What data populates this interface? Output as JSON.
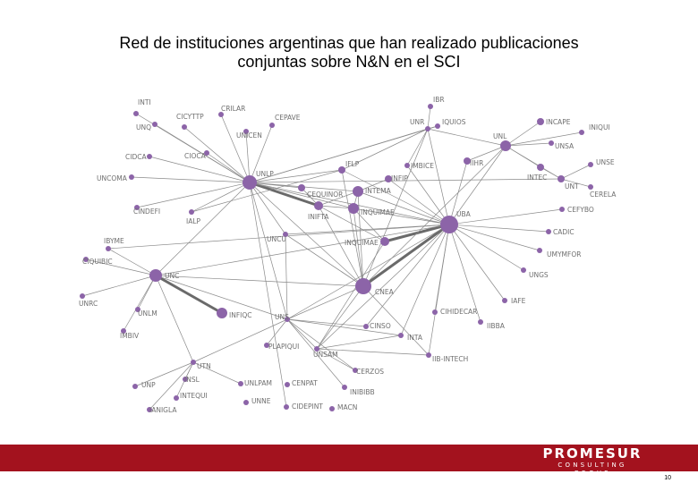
{
  "title": {
    "line1": "Red de instituciones argentinas que han realizado publicaciones",
    "line2": "conjuntas sobre N&N en el SCI"
  },
  "colors": {
    "node": "#8c64a8",
    "edge": "#8a8a8a",
    "footer_bar": "#a3121e"
  },
  "network": {
    "nodes": [
      {
        "id": "INTI",
        "label": "INTI"
      },
      {
        "id": "UNQ",
        "label": "UNQ"
      },
      {
        "id": "CICYTTP",
        "label": "CICYTTP"
      },
      {
        "id": "CRILAR",
        "label": "CRILAR"
      },
      {
        "id": "CEPAVE",
        "label": "CEPAVE"
      },
      {
        "id": "UNICEN",
        "label": "UNICEN"
      },
      {
        "id": "CIDCA",
        "label": "CIDCA"
      },
      {
        "id": "CIOCA",
        "label": "CIOCA"
      },
      {
        "id": "UNCOMA",
        "label": "UNCOMA"
      },
      {
        "id": "UNLP",
        "label": "UNLP"
      },
      {
        "id": "CINDEFI",
        "label": "CINDEFI"
      },
      {
        "id": "IALP",
        "label": "IALP"
      },
      {
        "id": "CEQUINOR",
        "label": "CEQUINOR"
      },
      {
        "id": "IFLP",
        "label": "IFLP"
      },
      {
        "id": "INIFTA",
        "label": "INIFTA"
      },
      {
        "id": "INFIP",
        "label": "INFIP"
      },
      {
        "id": "INTEMA",
        "label": "INTEMA"
      },
      {
        "id": "INQUIMAE_top",
        "label": "INQUIMAE"
      },
      {
        "id": "IMBICE",
        "label": "IMBICE"
      },
      {
        "id": "IBR",
        "label": "IBR"
      },
      {
        "id": "UNR",
        "label": "UNR"
      },
      {
        "id": "IQUIOS",
        "label": "IQUIOS"
      },
      {
        "id": "IIHR",
        "label": "IIHR"
      },
      {
        "id": "UNL",
        "label": "UNL"
      },
      {
        "id": "INCAPE",
        "label": "INCAPE"
      },
      {
        "id": "INIQUI",
        "label": "INIQUI"
      },
      {
        "id": "UNSA",
        "label": "UNSA"
      },
      {
        "id": "INTEC",
        "label": "INTEC"
      },
      {
        "id": "UNSE",
        "label": "UNSE"
      },
      {
        "id": "UNT",
        "label": "UNT"
      },
      {
        "id": "CERELA",
        "label": "CERELA"
      },
      {
        "id": "UBA",
        "label": "UBA"
      },
      {
        "id": "CEFYBO",
        "label": "CEFYBO"
      },
      {
        "id": "CADIC",
        "label": "CADIC"
      },
      {
        "id": "UMYMFOR",
        "label": "UMYMFOR"
      },
      {
        "id": "UNGS",
        "label": "UNGS"
      },
      {
        "id": "IAFE",
        "label": "IAFE"
      },
      {
        "id": "IIBBA",
        "label": "IIBBA"
      },
      {
        "id": "CIHIDECAR",
        "label": "CIHIDECAR"
      },
      {
        "id": "INQUIMAE",
        "label": "INQUIMAE"
      },
      {
        "id": "UNCU",
        "label": "UNCU"
      },
      {
        "id": "CNEA",
        "label": "CNEA"
      },
      {
        "id": "IBYME",
        "label": "IBYME"
      },
      {
        "id": "CIQUIBIC",
        "label": "CIQUIBIC"
      },
      {
        "id": "UNC",
        "label": "UNC"
      },
      {
        "id": "UNRC",
        "label": "UNRC"
      },
      {
        "id": "UNLM",
        "label": "UNLM"
      },
      {
        "id": "INFIQC",
        "label": "INFIQC"
      },
      {
        "id": "IMBIV",
        "label": "IMBIV"
      },
      {
        "id": "UNS",
        "label": "UNS"
      },
      {
        "id": "CINSO",
        "label": "CINSO"
      },
      {
        "id": "INTA",
        "label": "INTA"
      },
      {
        "id": "PLAPIQUI",
        "label": "PLAPIQUI"
      },
      {
        "id": "UNSAM",
        "label": "UNSAM"
      },
      {
        "id": "IIB-INTECH",
        "label": "IIB-INTECH"
      },
      {
        "id": "CERZOS",
        "label": "CERZOS"
      },
      {
        "id": "INIBIBB",
        "label": "INIBIBB"
      },
      {
        "id": "UTN",
        "label": "UTN"
      },
      {
        "id": "INSL",
        "label": "INSL"
      },
      {
        "id": "UNP",
        "label": "UNP"
      },
      {
        "id": "INTEQUI",
        "label": "INTEQUI"
      },
      {
        "id": "IANIGLA",
        "label": "IANIGLA"
      },
      {
        "id": "UNLPAM",
        "label": "UNLPAM"
      },
      {
        "id": "CENPAT",
        "label": "CENPAT"
      },
      {
        "id": "UNNE",
        "label": "UNNE"
      },
      {
        "id": "CIDEPINT",
        "label": "CIDEPINT"
      },
      {
        "id": "MACN",
        "label": "MACN"
      }
    ],
    "edges": [
      [
        "UNLP",
        "INIFTA",
        "strong"
      ],
      [
        "UBA",
        "CNEA",
        "strong"
      ],
      [
        "UNC",
        "INFIQC",
        "strong"
      ],
      [
        "UBA",
        "INQUIMAE",
        "strong"
      ],
      [
        "UNLP",
        "INTI"
      ],
      [
        "UNLP",
        "UNQ"
      ],
      [
        "UNLP",
        "CICYTTP"
      ],
      [
        "UNLP",
        "CRILAR"
      ],
      [
        "UNLP",
        "CEPAVE"
      ],
      [
        "UNLP",
        "UNICEN"
      ],
      [
        "UNLP",
        "CIDCA"
      ],
      [
        "UNLP",
        "CIOCA"
      ],
      [
        "UNLP",
        "UNCOMA"
      ],
      [
        "UNLP",
        "CINDEFI"
      ],
      [
        "UNLP",
        "IALP"
      ],
      [
        "UNLP",
        "CEQUINOR"
      ],
      [
        "UNLP",
        "IFLP"
      ],
      [
        "UNLP",
        "INTEMA"
      ],
      [
        "UNLP",
        "UBA"
      ],
      [
        "UNLP",
        "CNEA"
      ],
      [
        "UNLP",
        "UNCU"
      ],
      [
        "UNLP",
        "UNC"
      ],
      [
        "UNLP",
        "UNS"
      ],
      [
        "UNLP",
        "UNR"
      ],
      [
        "UNLP",
        "CIDEPINT"
      ],
      [
        "UNLP",
        "UNT"
      ],
      [
        "UNLP",
        "IQUIOS"
      ],
      [
        "UNLP",
        "INQUIMAE_top"
      ],
      [
        "UBA",
        "CEFYBO"
      ],
      [
        "UBA",
        "CADIC"
      ],
      [
        "UBA",
        "UMYMFOR"
      ],
      [
        "UBA",
        "UNGS"
      ],
      [
        "UBA",
        "IAFE"
      ],
      [
        "UBA",
        "IIBBA"
      ],
      [
        "UBA",
        "CIHIDECAR"
      ],
      [
        "UBA",
        "UNL"
      ],
      [
        "UBA",
        "IIHR"
      ],
      [
        "UBA",
        "UNR"
      ],
      [
        "UBA",
        "INTEMA"
      ],
      [
        "UBA",
        "IFLP"
      ],
      [
        "UBA",
        "UNSAM"
      ],
      [
        "UBA",
        "INTA"
      ],
      [
        "UBA",
        "UNC"
      ],
      [
        "UBA",
        "UNS"
      ],
      [
        "UBA",
        "IMBICE"
      ],
      [
        "UBA",
        "INQUIMAE_top"
      ],
      [
        "UBA",
        "INFIP"
      ],
      [
        "UBA",
        "UNCU"
      ],
      [
        "UBA",
        "IIB-INTECH"
      ],
      [
        "UBA",
        "CINSO"
      ],
      [
        "UBA",
        "IBYME"
      ],
      [
        "CNEA",
        "UNC"
      ],
      [
        "CNEA",
        "UNCU"
      ],
      [
        "CNEA",
        "UNS"
      ],
      [
        "CNEA",
        "INIFTA"
      ],
      [
        "CNEA",
        "UNSAM"
      ],
      [
        "CNEA",
        "INTEMA"
      ],
      [
        "CNEA",
        "IFLP"
      ],
      [
        "CNEA",
        "UNR"
      ],
      [
        "CNEA",
        "UNL"
      ],
      [
        "CNEA",
        "INQUIMAE_top"
      ],
      [
        "CNEA",
        "IIB-INTECH"
      ],
      [
        "UNC",
        "IBYME"
      ],
      [
        "UNC",
        "CIQUIBIC"
      ],
      [
        "UNC",
        "UNRC"
      ],
      [
        "UNC",
        "UNLM"
      ],
      [
        "UNC",
        "IMBIV"
      ],
      [
        "UNC",
        "UTN"
      ],
      [
        "UNC",
        "UNS"
      ],
      [
        "UNL",
        "INCAPE"
      ],
      [
        "UNL",
        "INIQUI"
      ],
      [
        "UNL",
        "UNSA"
      ],
      [
        "UNL",
        "INTEC"
      ],
      [
        "UNL",
        "IIHR"
      ],
      [
        "UNL",
        "UNT"
      ],
      [
        "UNL",
        "UNR"
      ],
      [
        "UNT",
        "UNSE"
      ],
      [
        "UNT",
        "CERELA"
      ],
      [
        "UNT",
        "INTEC"
      ],
      [
        "UNR",
        "IBR"
      ],
      [
        "UNR",
        "IQUIOS"
      ],
      [
        "UNR",
        "IMBICE"
      ],
      [
        "UNR",
        "IFLP"
      ],
      [
        "UNS",
        "PLAPIQUI"
      ],
      [
        "UNS",
        "UNSAM"
      ],
      [
        "UNS",
        "CINSO"
      ],
      [
        "UNS",
        "INTA"
      ],
      [
        "UNS",
        "CERZOS"
      ],
      [
        "UNS",
        "INIBIBB"
      ],
      [
        "UNS",
        "UTN"
      ],
      [
        "UNSAM",
        "INTA"
      ],
      [
        "UNSAM",
        "IIB-INTECH"
      ],
      [
        "UNSAM",
        "CERZOS"
      ],
      [
        "UNSAM",
        "INQUIMAE"
      ],
      [
        "UTN",
        "INSL"
      ],
      [
        "UTN",
        "UNP"
      ],
      [
        "UTN",
        "INTEQUI"
      ],
      [
        "UTN",
        "IANIGLA"
      ],
      [
        "UTN",
        "UNLPAM"
      ],
      [
        "INIFTA",
        "INTEMA"
      ],
      [
        "INIFTA",
        "INQUIMAE_top"
      ],
      [
        "INIFTA",
        "CEQUINOR"
      ],
      [
        "INIFTA",
        "INQUIMAE"
      ],
      [
        "INTEMA",
        "INQUIMAE_top"
      ],
      [
        "INTEMA",
        "INFIP"
      ],
      [
        "INQUIMAE",
        "INQUIMAE_top"
      ],
      [
        "UNCU",
        "UNS"
      ],
      [
        "UNCU",
        "CNEA"
      ],
      [
        "IALP",
        "IFLP"
      ]
    ]
  },
  "footer": {
    "logo_main": "PROMESUR",
    "logo_sub": "CONSULTING GROUP",
    "page_number": "10"
  }
}
